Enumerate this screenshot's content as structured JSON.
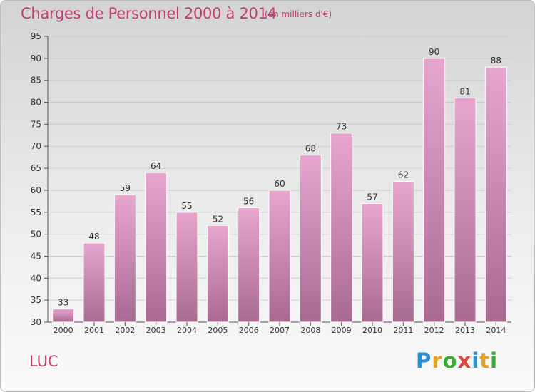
{
  "chart_data": {
    "type": "bar",
    "title": "Charges de Personnel 2000 à 2014",
    "subtitle": "(en milliers d'€)",
    "categories": [
      "2000",
      "2001",
      "2002",
      "2003",
      "2004",
      "2005",
      "2006",
      "2007",
      "2008",
      "2009",
      "2010",
      "2011",
      "2012",
      "2013",
      "2014"
    ],
    "values": [
      33,
      48,
      59,
      64,
      55,
      52,
      56,
      60,
      68,
      73,
      57,
      62,
      90,
      81,
      88
    ],
    "ylim": [
      30,
      95
    ],
    "yticks": [
      30,
      35,
      40,
      45,
      50,
      55,
      60,
      65,
      70,
      75,
      80,
      85,
      90,
      95
    ],
    "grid": true,
    "bar_color": "#cf7aab"
  },
  "place": "LUC",
  "logo": {
    "letters": [
      "P",
      "r",
      "o",
      "x",
      "i",
      "t",
      "i"
    ],
    "colors": [
      "#2b8fd6",
      "#e6a11d",
      "#3aa935",
      "#e0453a",
      "#2b8fd6",
      "#e6a11d",
      "#3aa935"
    ]
  },
  "colors": {
    "accent": "#c53c73"
  }
}
